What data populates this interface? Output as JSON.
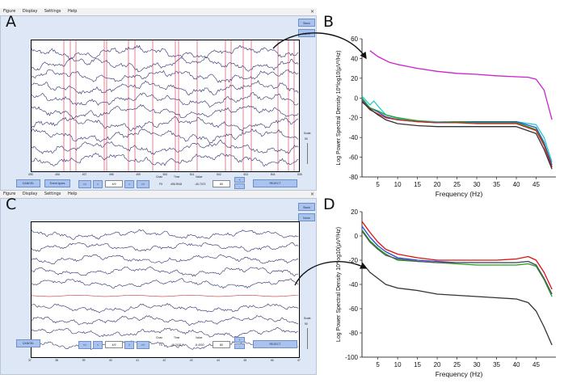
{
  "panel_letters": {
    "a": "A",
    "b": "B",
    "c": "C",
    "d": "D"
  },
  "menu": [
    "Figure",
    "Display",
    "Settings",
    "Help"
  ],
  "close_glyph": "×",
  "top_window": {
    "side_buttons": [
      "Stack",
      "Norm"
    ],
    "scale_label": "Scale",
    "scale_value": "50",
    "bottom": {
      "cancel": "CANCEL",
      "event_types": "Event types",
      "nav": [
        "<<",
        "<",
        ">",
        ">>"
      ],
      "position_value": "4/9",
      "channel_header": "Chan",
      "time_header": "Time",
      "value_header": "Value",
      "channel": "F5",
      "time": "496.9918",
      "value": "-40.7472",
      "scale_field": "80",
      "plus": "+",
      "minus": "-",
      "reject": "REJECT"
    },
    "x_ticks": [
      "495",
      "496",
      "497",
      "498",
      "499",
      "500",
      "501",
      "502",
      "503",
      "504",
      "505"
    ]
  },
  "bottom_window": {
    "side_buttons": [
      "Stack",
      "Norm"
    ],
    "scale_label": "Scale",
    "scale_value": "50",
    "bottom": {
      "cancel": "CANCEL",
      "nav": [
        "<<",
        "<",
        ">",
        ">>"
      ],
      "position_value": "4/9",
      "channel_header": "Chan",
      "time_header": "Time",
      "value_header": "Value",
      "channel": "F5",
      "time": "49.2100",
      "value": "-8.4000",
      "scale_field": "80",
      "plus": "+",
      "minus": "-",
      "reject": "REJECT"
    },
    "x_ticks": [
      "37",
      "38",
      "39",
      "40",
      "41",
      "42",
      "43",
      "44",
      "45",
      "46",
      "47"
    ]
  },
  "chart_data": [
    {
      "type": "line",
      "ylabel": "Log Power Spectral Density 10*log10(μV²/Hz)",
      "xlabel": "Frequency (Hz)",
      "xlim": [
        1,
        50
      ],
      "ylim": [
        -80,
        60
      ],
      "x_ticks": [
        5,
        10,
        15,
        20,
        25,
        30,
        35,
        40,
        45
      ],
      "y_ticks": [
        60,
        40,
        20,
        0,
        -20,
        -40,
        -60,
        -80
      ],
      "series": [
        {
          "color": "#cc22cc",
          "x": [
            3,
            4,
            5,
            8,
            10,
            15,
            20,
            25,
            30,
            35,
            40,
            43,
            45,
            47,
            49
          ],
          "y": [
            48,
            45,
            42,
            36,
            34,
            30,
            27,
            25,
            24,
            22.5,
            21.5,
            21,
            19,
            8,
            -22
          ]
        },
        {
          "color": "#22cccc",
          "x": [
            1,
            3,
            4,
            5,
            7,
            10,
            15,
            20,
            25,
            30,
            35,
            40,
            45,
            47,
            49
          ],
          "y": [
            2,
            -7,
            -3,
            -8,
            -17,
            -21,
            -23,
            -24,
            -24,
            -24,
            -24,
            -24,
            -27,
            -40,
            -65
          ]
        },
        {
          "color": "#2a4bd0",
          "x": [
            1,
            3,
            5,
            7,
            10,
            15,
            20,
            25,
            30,
            35,
            40,
            45,
            47,
            49
          ],
          "y": [
            -2,
            -10,
            -14,
            -19,
            -22,
            -24,
            -25,
            -24,
            -24,
            -24,
            -24,
            -30,
            -45,
            -68
          ]
        },
        {
          "color": "#22a022",
          "x": [
            1,
            3,
            5,
            7,
            10,
            15,
            20,
            25,
            30,
            35,
            40,
            45,
            47,
            49
          ],
          "y": [
            0,
            -10,
            -13,
            -17,
            -20,
            -23,
            -25,
            -24,
            -25,
            -25,
            -25,
            -32,
            -47,
            -70
          ]
        },
        {
          "color": "#cc2222",
          "x": [
            1,
            3,
            5,
            7,
            10,
            15,
            20,
            25,
            30,
            35,
            40,
            45,
            47,
            49
          ],
          "y": [
            -3,
            -12,
            -16,
            -20,
            -22,
            -24,
            -25,
            -25,
            -26,
            -26,
            -26,
            -33,
            -48,
            -70
          ]
        },
        {
          "color": "#333333",
          "x": [
            1,
            3,
            5,
            7,
            10,
            15,
            20,
            25,
            30,
            35,
            40,
            45,
            47,
            49
          ],
          "y": [
            -4,
            -11,
            -17,
            -22,
            -26,
            -28,
            -29,
            -29,
            -29,
            -29,
            -29,
            -36,
            -52,
            -72
          ]
        }
      ]
    },
    {
      "type": "line",
      "ylabel": "Log Power Spectral Density 10*log10(μV²/Hz)",
      "xlabel": "Frequency (Hz)",
      "xlim": [
        1,
        50
      ],
      "ylim": [
        -100,
        20
      ],
      "x_ticks": [
        5,
        10,
        15,
        20,
        25,
        30,
        35,
        40,
        45
      ],
      "y_ticks": [
        20,
        0,
        -20,
        -40,
        -60,
        -80,
        -100
      ],
      "series": [
        {
          "color": "#dd1111",
          "x": [
            1,
            3,
            5,
            7,
            10,
            15,
            20,
            25,
            30,
            35,
            40,
            43,
            45,
            47,
            49
          ],
          "y": [
            12,
            3,
            -5,
            -11,
            -15,
            -18,
            -20,
            -20,
            -20,
            -20,
            -19,
            -17,
            -20,
            -30,
            -44
          ]
        },
        {
          "color": "#2a4bd0",
          "x": [
            1,
            3,
            5,
            7,
            10,
            15,
            20,
            25,
            30,
            35,
            40,
            43,
            45,
            47,
            49
          ],
          "y": [
            8,
            -1,
            -8,
            -13,
            -18,
            -20,
            -21,
            -22,
            -22,
            -22,
            -22,
            -21,
            -24,
            -35,
            -48
          ]
        },
        {
          "color": "#22a022",
          "x": [
            1,
            3,
            5,
            7,
            10,
            15,
            20,
            25,
            30,
            35,
            40,
            43,
            45,
            47,
            49
          ],
          "y": [
            5,
            -4,
            -10,
            -15,
            -20,
            -21,
            -22,
            -23,
            -24,
            -24,
            -24,
            -23,
            -25,
            -36,
            -50
          ]
        },
        {
          "color": "#555555",
          "x": [
            1,
            3,
            5,
            7,
            10,
            15,
            20,
            25,
            30,
            35,
            40,
            43,
            45,
            47,
            49
          ],
          "y": [
            4,
            -5,
            -11,
            -16,
            -19,
            -21,
            -22,
            -22,
            -22,
            -22,
            -22,
            -21,
            -24,
            -35,
            -48
          ]
        },
        {
          "color": "#333333",
          "x": [
            1,
            3,
            5,
            7,
            10,
            15,
            20,
            25,
            30,
            35,
            40,
            43,
            45,
            47,
            49
          ],
          "y": [
            -22,
            -30,
            -35,
            -40,
            -43,
            -45,
            -48,
            -49,
            -50,
            -51,
            -52,
            -55,
            -62,
            -75,
            -90
          ]
        }
      ]
    }
  ]
}
